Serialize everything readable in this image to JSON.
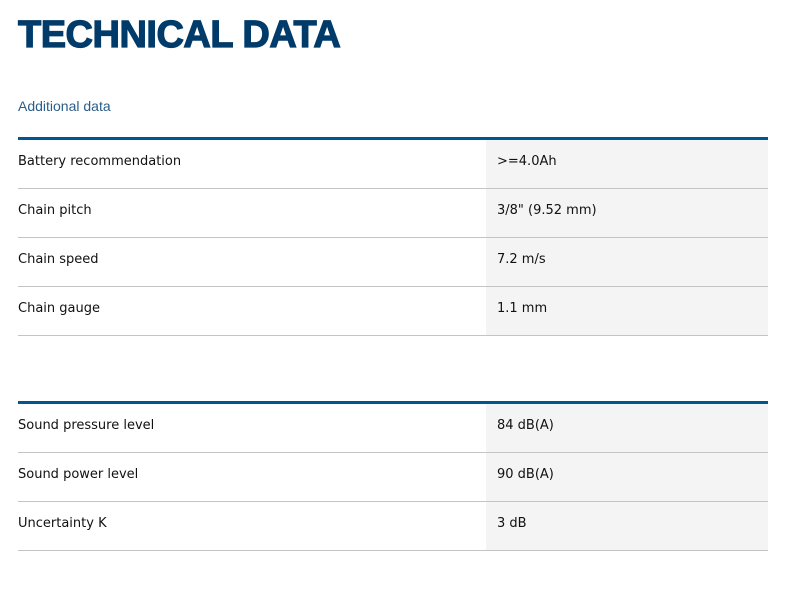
{
  "title": "TECHNICAL DATA",
  "subtitle": "Additional data",
  "colors": {
    "accent": "#005691",
    "title": "#003b6a",
    "value_bg": "#f4f4f4"
  },
  "tables": [
    {
      "rows": [
        {
          "label": "Battery recommendation",
          "value": ">=4.0Ah"
        },
        {
          "label": "Chain pitch",
          "value": "3/8\" (9.52 mm)"
        },
        {
          "label": "Chain speed",
          "value": "7.2 m/s"
        },
        {
          "label": "Chain gauge",
          "value": "1.1 mm"
        }
      ]
    },
    {
      "rows": [
        {
          "label": "Sound pressure level",
          "value": "84 dB(A)"
        },
        {
          "label": "Sound power level",
          "value": "90 dB(A)"
        },
        {
          "label": "Uncertainty K",
          "value": "3 dB"
        }
      ]
    }
  ]
}
